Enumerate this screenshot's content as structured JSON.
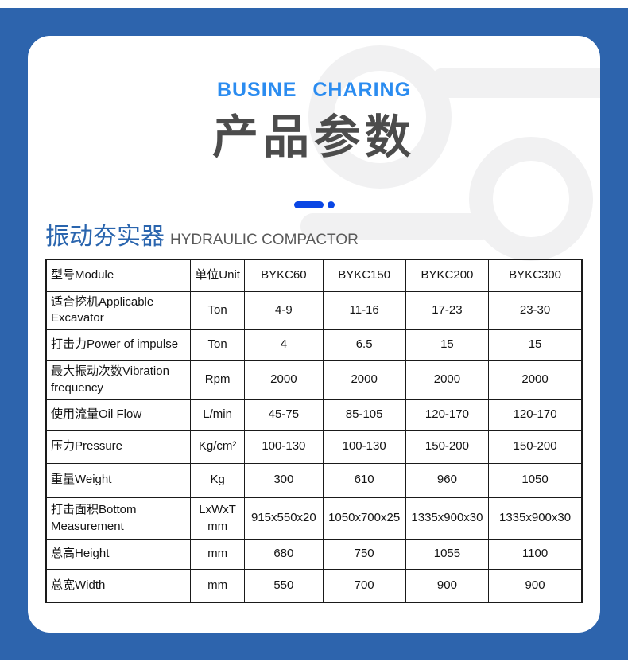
{
  "colors": {
    "page_background": "#2d64ad",
    "subtitle_blue": "#2b8cf0",
    "title_gray": "#4c4c4c",
    "divider_blue": "#0a46e4",
    "section_blue": "#2a65ae",
    "watermark_gray": "#f1f1f2"
  },
  "header": {
    "subtitle": "BUSINE CHARING",
    "title": "产品参数"
  },
  "icons": {
    "watermark": "key-ring-watermark-icon",
    "divider": "dash-dot-divider"
  },
  "section": {
    "title_cn": "振动夯实器",
    "title_en": "HYDRAULIC COMPACTOR"
  },
  "table": {
    "columns": [
      "型号Module",
      "单位Unit",
      "BYKC60",
      "BYKC150",
      "BYKC200",
      "BYKC300"
    ],
    "rows": [
      {
        "label": "适合挖机Applicable Excavator",
        "unit": "Ton",
        "values": [
          "4-9",
          "11-16",
          "17-23",
          "23-30"
        ]
      },
      {
        "label": "打击力Power of impulse",
        "unit": "Ton",
        "values": [
          "4",
          "6.5",
          "15",
          "15"
        ]
      },
      {
        "label": "最大振动次数Vibration frequency",
        "unit": "Rpm",
        "values": [
          "2000",
          "2000",
          "2000",
          "2000"
        ]
      },
      {
        "label": "使用流量Oil Flow",
        "unit": "L/min",
        "values": [
          "45-75",
          "85-105",
          "120-170",
          "120-170"
        ]
      },
      {
        "label": "压力Pressure",
        "unit": "Kg/cm²",
        "values": [
          "100-130",
          "100-130",
          "150-200",
          "150-200"
        ]
      },
      {
        "label": "重量Weight",
        "unit": "Kg",
        "values": [
          "300",
          "610",
          "960",
          "1050"
        ]
      },
      {
        "label": "打击面积Bottom Measurement",
        "unit": "LxWxT\nmm",
        "values": [
          "915x550x20",
          "1050x700x25",
          "1335x900x30",
          "1335x900x30"
        ]
      },
      {
        "label": "总高Height",
        "unit": "mm",
        "values": [
          "680",
          "750",
          "1055",
          "1100"
        ]
      },
      {
        "label": "总宽Width",
        "unit": "mm",
        "values": [
          "550",
          "700",
          "900",
          "900"
        ]
      }
    ]
  }
}
